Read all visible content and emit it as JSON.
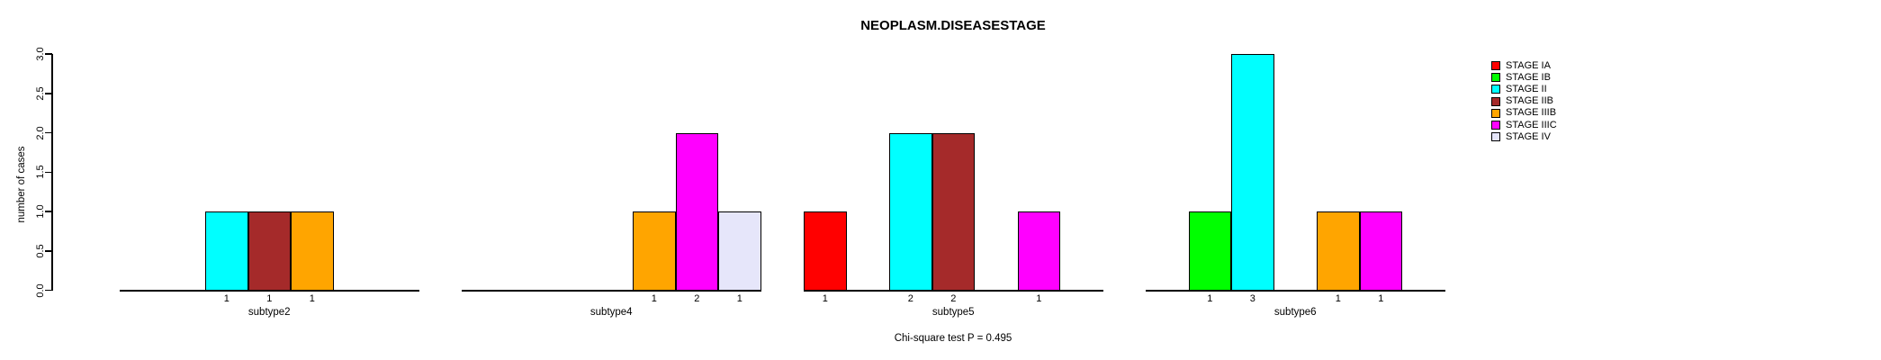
{
  "chart_data": {
    "type": "bar",
    "title": "NEOPLASM.DISEASESTAGE",
    "ylabel": "number of cases",
    "caption": "Chi-square test P = 0.495",
    "ylim": [
      0.0,
      3.0
    ],
    "ytick_values": [
      0.0,
      0.5,
      1.0,
      1.5,
      2.0,
      2.5,
      3.0
    ],
    "ytick_labels": [
      "0.0",
      "0.5",
      "1.0",
      "1.5",
      "2.0",
      "2.5",
      "3.0"
    ],
    "grid": "off",
    "legend_position": "top-right",
    "stages": [
      "STAGE IA",
      "STAGE IB",
      "STAGE II",
      "STAGE IIB",
      "STAGE IIIB",
      "STAGE IIIC",
      "STAGE IV"
    ],
    "stage_colors": [
      "#FF0000",
      "#00FF00",
      "#00FFFF",
      "#A52A2A",
      "#FFA500",
      "#FF00FF",
      "#E6E6FA"
    ],
    "categories": [
      "subtype2",
      "subtype4",
      "subtype5",
      "subtype6"
    ],
    "series": [
      {
        "name": "STAGE IA",
        "color": "#FF0000",
        "values": [
          0,
          0,
          1,
          0
        ]
      },
      {
        "name": "STAGE IB",
        "color": "#00FF00",
        "values": [
          0,
          0,
          0,
          1
        ]
      },
      {
        "name": "STAGE II",
        "color": "#00FFFF",
        "values": [
          1,
          0,
          2,
          3
        ]
      },
      {
        "name": "STAGE IIB",
        "color": "#A52A2A",
        "values": [
          1,
          0,
          2,
          0
        ]
      },
      {
        "name": "STAGE IIIB",
        "color": "#FFA500",
        "values": [
          1,
          1,
          0,
          1
        ]
      },
      {
        "name": "STAGE IIIC",
        "color": "#FF00FF",
        "values": [
          0,
          2,
          1,
          1
        ]
      },
      {
        "name": "STAGE IV",
        "color": "#E6E6FA",
        "values": [
          0,
          1,
          0,
          0
        ]
      }
    ],
    "groups": [
      {
        "label": "subtype2",
        "counts": [
          0,
          0,
          1,
          1,
          1,
          0,
          0
        ]
      },
      {
        "label": "subtype4",
        "counts": [
          0,
          0,
          0,
          0,
          1,
          2,
          1
        ]
      },
      {
        "label": "subtype5",
        "counts": [
          1,
          0,
          2,
          2,
          0,
          1,
          0
        ]
      },
      {
        "label": "subtype6",
        "counts": [
          0,
          1,
          3,
          0,
          1,
          1,
          0
        ]
      }
    ],
    "legend": [
      {
        "label": "STAGE IA",
        "color": "#FF0000"
      },
      {
        "label": "STAGE IB",
        "color": "#00FF00"
      },
      {
        "label": "STAGE II",
        "color": "#00FFFF"
      },
      {
        "label": "STAGE IIB",
        "color": "#A52A2A"
      },
      {
        "label": "STAGE IIIB",
        "color": "#FFA500"
      },
      {
        "label": "STAGE IIIC",
        "color": "#FF00FF"
      },
      {
        "label": "STAGE IV",
        "color": "#E6E6FA"
      }
    ]
  }
}
